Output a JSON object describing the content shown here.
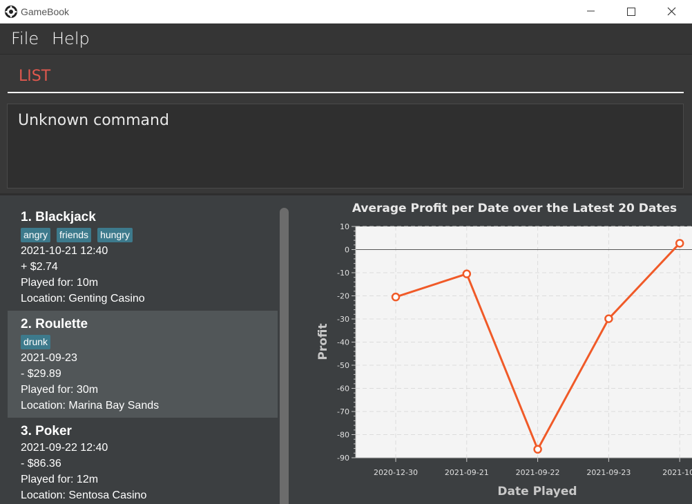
{
  "window": {
    "title": "GameBook"
  },
  "menu": {
    "file": "File",
    "help": "Help"
  },
  "command": {
    "value": "LIST"
  },
  "result": {
    "message": "Unknown command"
  },
  "games": [
    {
      "title": "1.  Blackjack",
      "tags": [
        "angry",
        "friends",
        "hungry"
      ],
      "datetime": "2021-10-21 12:40",
      "profit": "+ $2.74",
      "duration": "Played for: 10m",
      "location": "Location: Genting Casino"
    },
    {
      "title": "2.  Roulette",
      "tags": [
        "drunk"
      ],
      "datetime": "2021-09-23",
      "profit": "- $29.89",
      "duration": "Played for: 30m",
      "location": "Location: Marina Bay Sands"
    },
    {
      "title": "3.  Poker",
      "tags": [],
      "datetime": "2021-09-22 12:40",
      "profit": "- $86.36",
      "duration": "Played for: 12m",
      "location": "Location: Sentosa Casino"
    }
  ],
  "colors": {
    "accent": "#e0584e",
    "tag_bg": "#3d7a8c",
    "series": "#f05a28",
    "selected_card": "#515658"
  },
  "chart_data": {
    "type": "line",
    "title": "Average Profit per Date over the Latest 20 Dates",
    "xlabel": "Date Played",
    "ylabel": "Profit",
    "categories": [
      "2020-12-30",
      "2021-09-21",
      "2021-09-22",
      "2021-09-23",
      "2021-10-"
    ],
    "series": [
      {
        "values": [
          -20.5,
          -10.5,
          -86.36,
          -29.89,
          2.74
        ]
      }
    ],
    "ylim": [
      -90,
      10
    ],
    "yticks": [
      10,
      0,
      -10,
      -20,
      -30,
      -40,
      -50,
      -60,
      -70,
      -80,
      -90
    ],
    "grid": true
  }
}
